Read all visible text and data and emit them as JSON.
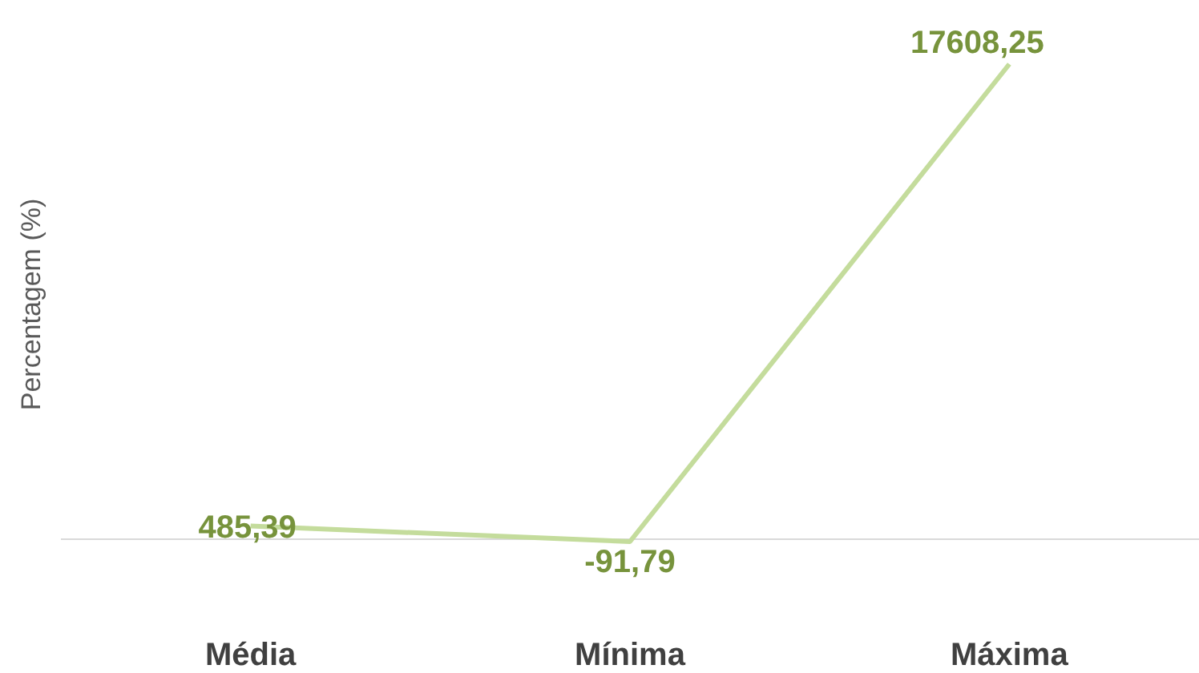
{
  "chart_data": {
    "type": "line",
    "ylabel": "Percentagem (%)",
    "categories": [
      "Média",
      "Mínima",
      "Máxima"
    ],
    "series": [
      {
        "color": "#c4dc9c",
        "values": [
          485.39,
          -91.79,
          17608.25
        ],
        "value_labels": [
          "485,39",
          "-91,79",
          "17608,25"
        ]
      }
    ],
    "marker": "none",
    "grid": false,
    "legend": false
  }
}
